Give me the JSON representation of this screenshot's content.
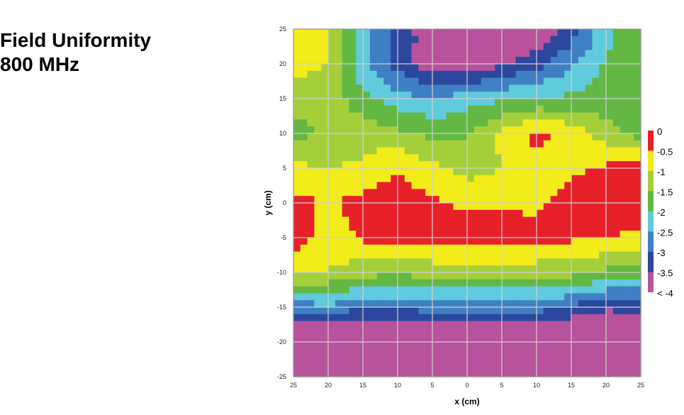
{
  "title": {
    "line1": "Field Uniformity",
    "line2": "800 MHz"
  },
  "chart_data": {
    "type": "heatmap",
    "xlabel": "x (cm)",
    "ylabel": "y (cm)",
    "xlim": [
      -25,
      25
    ],
    "ylim": [
      -25,
      25
    ],
    "x_tick_labels": [
      "25",
      "20",
      "15",
      "10",
      "5",
      "0",
      "5",
      "10",
      "15",
      "20",
      "25"
    ],
    "y_tick_labels": [
      "25",
      "20",
      "15",
      "10",
      "5",
      "0",
      "-5",
      "-10",
      "-15",
      "-20",
      "-25"
    ],
    "grid": true,
    "legend_position": "right",
    "legend": [
      {
        "label": "0",
        "color": "#e8202a"
      },
      {
        "label": "-0.5",
        "color": "#f2ec1a"
      },
      {
        "label": "-1",
        "color": "#a5cf3a"
      },
      {
        "label": "-1.5",
        "color": "#62b843"
      },
      {
        "label": "-2",
        "color": "#5fcbdc"
      },
      {
        "label": "-2.5",
        "color": "#3f7fc4"
      },
      {
        "label": "-3",
        "color": "#2c479e"
      },
      {
        "label": "-3.5",
        "color": "#b9529c"
      },
      {
        "label": "< -4",
        "color": "#b9529c"
      }
    ],
    "level_bands": [
      {
        "from": -0.5,
        "to": 0,
        "color": "#e8202a"
      },
      {
        "from": -1,
        "to": -0.5,
        "color": "#f2ec1a"
      },
      {
        "from": -1.5,
        "to": -1,
        "color": "#a5cf3a"
      },
      {
        "from": -2,
        "to": -1.5,
        "color": "#62b843"
      },
      {
        "from": -2.5,
        "to": -2,
        "color": "#5fcbdc"
      },
      {
        "from": -3,
        "to": -2.5,
        "color": "#3f7fc4"
      },
      {
        "from": -3.5,
        "to": -3,
        "color": "#2c479e"
      },
      {
        "from": -99,
        "to": -3.5,
        "color": "#b9529c"
      }
    ],
    "x": [
      -25,
      -20,
      -15,
      -10,
      -5,
      0,
      5,
      10,
      15,
      20,
      25
    ],
    "y": [
      25,
      20,
      15,
      10,
      5,
      0,
      -5,
      -10,
      -15,
      -20,
      -25
    ],
    "values": [
      [
        -0.8,
        -0.9,
        -2.2,
        -3.2,
        -3.8,
        -4.2,
        -4.2,
        -4.0,
        -3.3,
        -2.2,
        -1.6
      ],
      [
        -0.8,
        -1.0,
        -2.4,
        -3.2,
        -3.8,
        -4.0,
        -3.6,
        -3.2,
        -2.6,
        -1.9,
        -1.6
      ],
      [
        -1.3,
        -1.2,
        -1.8,
        -2.3,
        -2.5,
        -2.2,
        -2.1,
        -2.0,
        -1.9,
        -1.8,
        -1.7
      ],
      [
        -1.7,
        -1.4,
        -1.2,
        -1.4,
        -1.6,
        -1.6,
        -0.9,
        -0.3,
        -0.7,
        -1.3,
        -1.7
      ],
      [
        -0.9,
        -1.0,
        -0.9,
        -0.5,
        -0.9,
        -1.2,
        -1.0,
        -0.8,
        -0.6,
        -0.4,
        -0.3
      ],
      [
        -0.3,
        -0.6,
        -0.3,
        -0.2,
        -0.4,
        -0.6,
        -0.6,
        -0.6,
        -0.3,
        -0.2,
        -0.2
      ],
      [
        -0.2,
        -0.8,
        -0.4,
        -0.3,
        -0.3,
        -0.2,
        -0.2,
        -0.3,
        -0.4,
        -0.5,
        -0.6
      ],
      [
        -0.8,
        -1.0,
        -1.3,
        -1.4,
        -1.3,
        -1.3,
        -1.2,
        -1.3,
        -1.3,
        -1.6,
        -1.8
      ],
      [
        -2.8,
        -2.6,
        -3.0,
        -2.9,
        -2.8,
        -2.8,
        -2.8,
        -2.8,
        -3.1,
        -3.4,
        -3.3
      ],
      [
        -4.5,
        -4.5,
        -4.5,
        -4.5,
        -4.5,
        -4.5,
        -4.5,
        -4.5,
        -4.5,
        -4.5,
        -4.5
      ],
      [
        -4.8,
        -4.8,
        -4.8,
        -4.8,
        -4.8,
        -4.8,
        -4.8,
        -4.8,
        -4.8,
        -4.8,
        -4.8
      ]
    ]
  }
}
